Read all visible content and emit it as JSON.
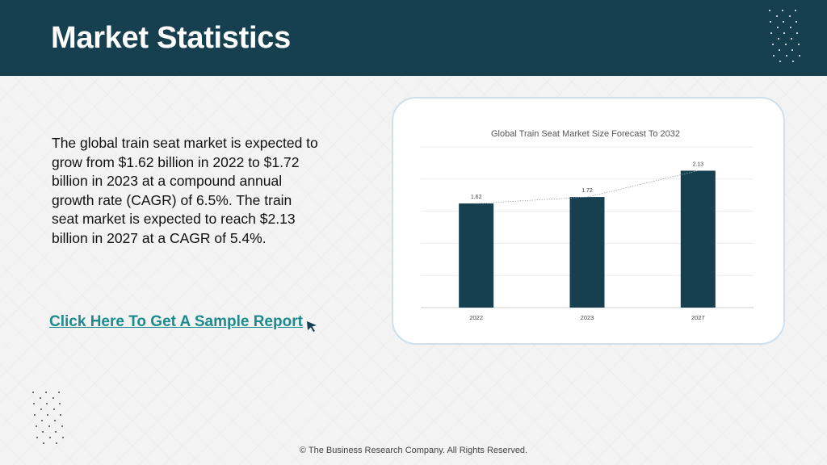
{
  "header": {
    "title": "Market Statistics"
  },
  "main": {
    "description": "The global train seat market is expected to grow from $1.62 billion in 2022 to $1.72 billion in 2023 at a compound annual growth rate (CAGR) of 6.5%. The train seat market is expected to reach $2.13 billion in 2027 at a CAGR of 5.4%.",
    "cta_label": "Click Here To Get A Sample Report"
  },
  "footer": {
    "copyright": "© The Business Research Company. All Rights Reserved."
  },
  "colors": {
    "header_bg": "#163f4f",
    "bar": "#163f4f",
    "link": "#1d8a8d"
  },
  "chart_data": {
    "type": "bar",
    "title": "Global Train Seat Market Size Forecast To 2032",
    "categories": [
      "2022",
      "2023",
      "2027"
    ],
    "values": [
      1.62,
      1.72,
      2.13
    ],
    "data_labels": [
      "1.62",
      "1.72",
      "2.13"
    ],
    "ylim": [
      0,
      2.5
    ],
    "trendline": true,
    "grid": true,
    "xlabel": "",
    "ylabel": ""
  }
}
